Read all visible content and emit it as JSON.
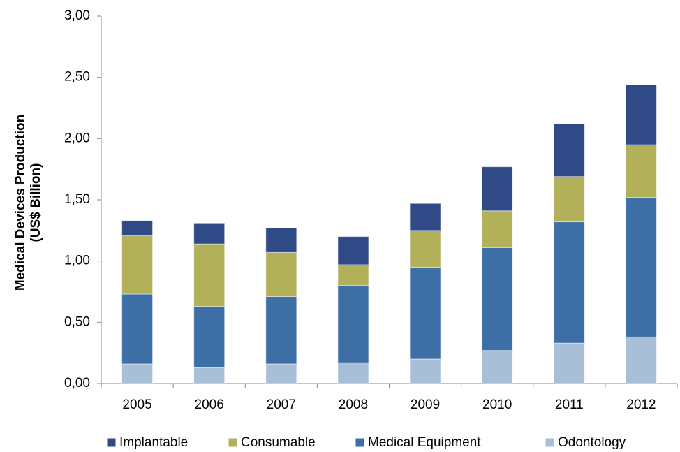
{
  "chart_data": {
    "type": "stacked_bar",
    "y_label": [
      "Medical Devices Production",
      "(US$ Billion)"
    ],
    "categories": [
      "2005",
      "2006",
      "2007",
      "2008",
      "2009",
      "2010",
      "2011",
      "2012"
    ],
    "series": [
      {
        "name": "Implantable",
        "color": "#2f4a86",
        "values": [
          0.12,
          0.17,
          0.2,
          0.23,
          0.22,
          0.36,
          0.43,
          0.49
        ]
      },
      {
        "name": "Consumable",
        "color": "#b3b05a",
        "values": [
          0.48,
          0.51,
          0.36,
          0.17,
          0.3,
          0.3,
          0.37,
          0.43
        ]
      },
      {
        "name": "Medical Equipment",
        "color": "#3d6fa6",
        "values": [
          0.57,
          0.5,
          0.55,
          0.63,
          0.75,
          0.84,
          0.99,
          1.14
        ]
      },
      {
        "name": "Odontology",
        "color": "#a9bfd8",
        "values": [
          0.16,
          0.13,
          0.16,
          0.17,
          0.2,
          0.27,
          0.33,
          0.38
        ]
      }
    ],
    "ylim": [
      0,
      3
    ],
    "yticks": [
      {
        "value": 0,
        "label": "0,00"
      },
      {
        "value": 0.5,
        "label": "0,50"
      },
      {
        "value": 1,
        "label": "1,00"
      },
      {
        "value": 1.5,
        "label": "1,50"
      },
      {
        "value": 2,
        "label": "2,00"
      },
      {
        "value": 2.5,
        "label": "2,50"
      },
      {
        "value": 3,
        "label": "3,00"
      }
    ],
    "legend": "bottom"
  }
}
